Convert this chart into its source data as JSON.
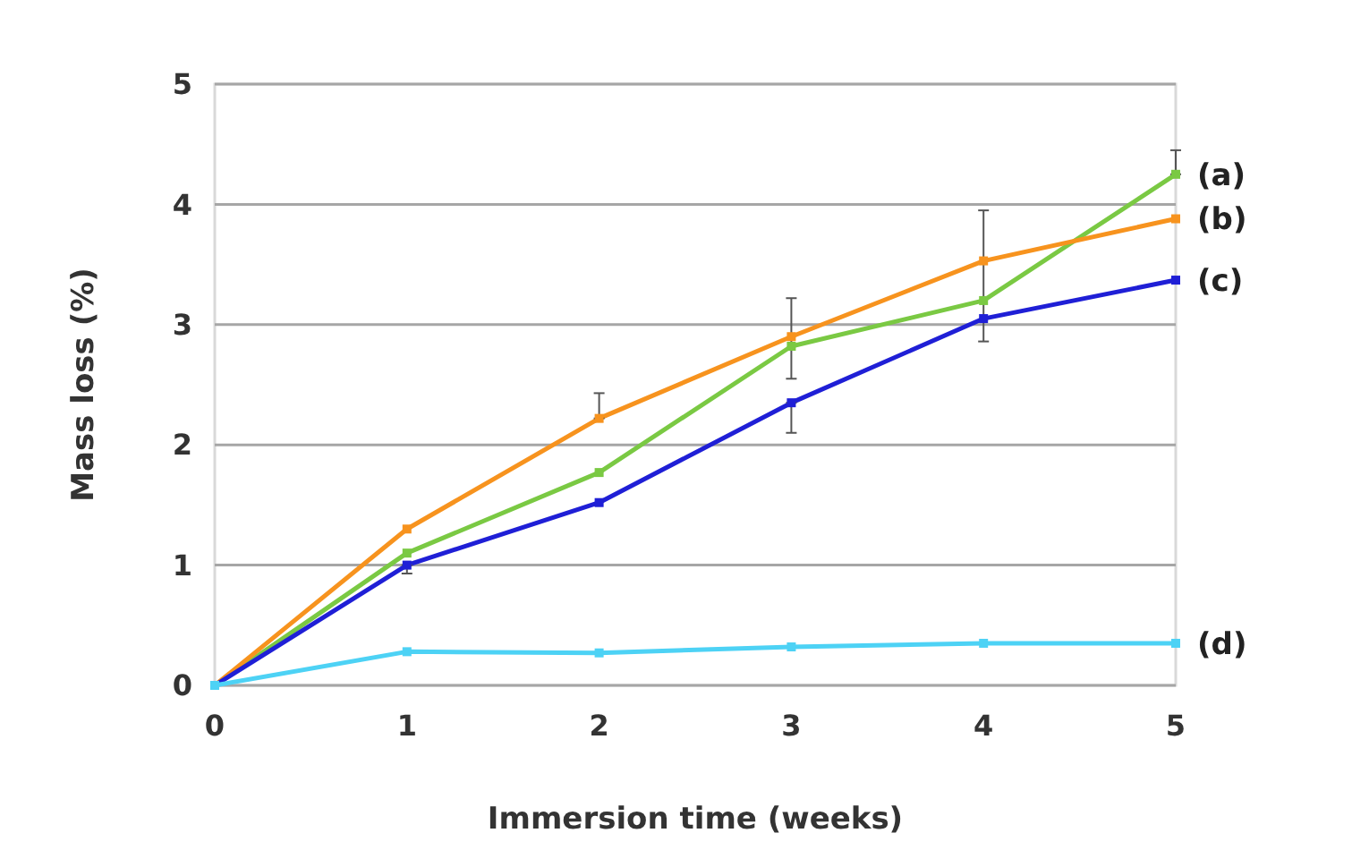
{
  "chart_data": {
    "type": "line",
    "xlabel": "Immersion time (weeks)",
    "ylabel": "Mass loss (%)",
    "x": [
      0,
      1,
      2,
      3,
      4,
      5
    ],
    "xlim": [
      0,
      5
    ],
    "xticks": [
      0,
      1,
      2,
      3,
      4,
      5
    ],
    "ylim": [
      0,
      5
    ],
    "yticks": [
      0,
      1,
      2,
      3,
      4,
      5
    ],
    "grid": "y",
    "marker": "square",
    "line_style": "solid",
    "series": [
      {
        "name": "(a)",
        "color": "#7ac943",
        "values": [
          0,
          1.1,
          1.77,
          2.82,
          3.2,
          4.25
        ],
        "errors": [
          null,
          null,
          null,
          [
            2.55,
            3.22
          ],
          [
            2.86,
            3.95
          ],
          [
            4.25,
            4.45
          ]
        ]
      },
      {
        "name": "(b)",
        "color": "#f7931e",
        "values": [
          0,
          1.3,
          2.22,
          2.9,
          3.53,
          3.88
        ],
        "errors": [
          null,
          null,
          [
            2.22,
            2.43
          ],
          null,
          null,
          null
        ]
      },
      {
        "name": "(c)",
        "color": "#1f1fd6",
        "values": [
          0,
          1.0,
          1.52,
          2.35,
          3.05,
          3.37
        ],
        "errors": [
          null,
          [
            0.93,
            1.0
          ],
          null,
          [
            2.1,
            2.35
          ],
          null,
          null
        ]
      },
      {
        "name": "(d)",
        "color": "#4dd2f5",
        "values": [
          0,
          0.28,
          0.27,
          0.32,
          0.35,
          0.35
        ]
      }
    ]
  }
}
